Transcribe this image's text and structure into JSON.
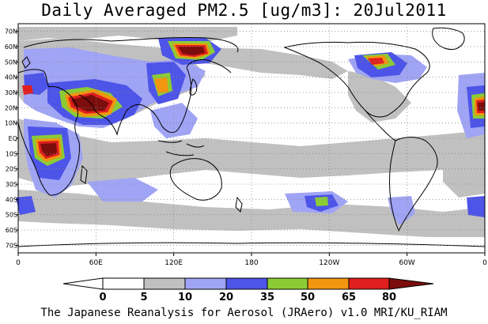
{
  "title": "Daily Averaged PM2.5 [ug/m3]: 20Jul2011",
  "credit": "The Japanese Reanalysis for Aerosol (JRAero) v1.0 MRI/KU_RIAM",
  "lat_labels": [
    "70N",
    "60N",
    "50N",
    "40N",
    "30N",
    "20N",
    "10N",
    "EQ",
    "10S",
    "20S",
    "30S",
    "40S",
    "50S",
    "60S",
    "70S"
  ],
  "lon_labels": [
    "0",
    "60E",
    "120E",
    "180",
    "120W",
    "60W",
    "0"
  ],
  "colorbar": {
    "labels": [
      "0",
      "5",
      "10",
      "20",
      "35",
      "50",
      "65",
      "80"
    ],
    "colors": [
      "#ffffff",
      "#ffffff",
      "#c0c0c0",
      "#a0a4f4",
      "#4d54e8",
      "#8bcc35",
      "#f2950f",
      "#e01f1f",
      "#7c0d0d"
    ]
  },
  "map_colors": {
    "ocean": "#ffffff",
    "coast": "#000000",
    "grid": "#888888"
  }
}
